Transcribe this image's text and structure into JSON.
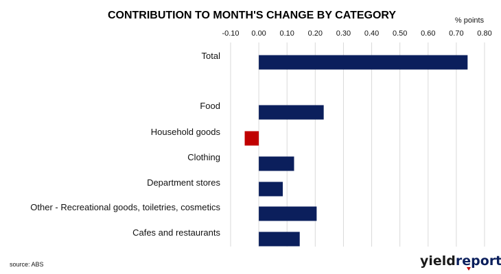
{
  "chart_data": {
    "type": "bar",
    "orientation": "horizontal",
    "title": "CONTRIBUTION TO MONTH'S CHANGE BY CATEGORY",
    "unit_label": "% points",
    "x_ticks": [
      "-0.10",
      "0.00",
      "0.10",
      "0.20",
      "0.30",
      "0.40",
      "0.50",
      "0.60",
      "0.70",
      "0.80"
    ],
    "xlim": [
      -0.1,
      0.8
    ],
    "axis_position": "top",
    "grid": true,
    "categories": [
      "Total",
      "Food",
      "Household goods",
      "Clothing",
      "Department stores",
      "Other - Recreational goods, toiletries, cosmetics",
      "Cafes and restaurants"
    ],
    "values": [
      0.74,
      0.23,
      -0.05,
      0.125,
      0.085,
      0.205,
      0.145
    ],
    "colors": {
      "positive": "#0b1f5c",
      "negative": "#c00000"
    }
  },
  "source": "source: ABS",
  "logo": {
    "part1": "yield",
    "part2": "report",
    "color1": "#1a1a1a",
    "color2": "#0b1f5c",
    "accent": "#c00000"
  }
}
